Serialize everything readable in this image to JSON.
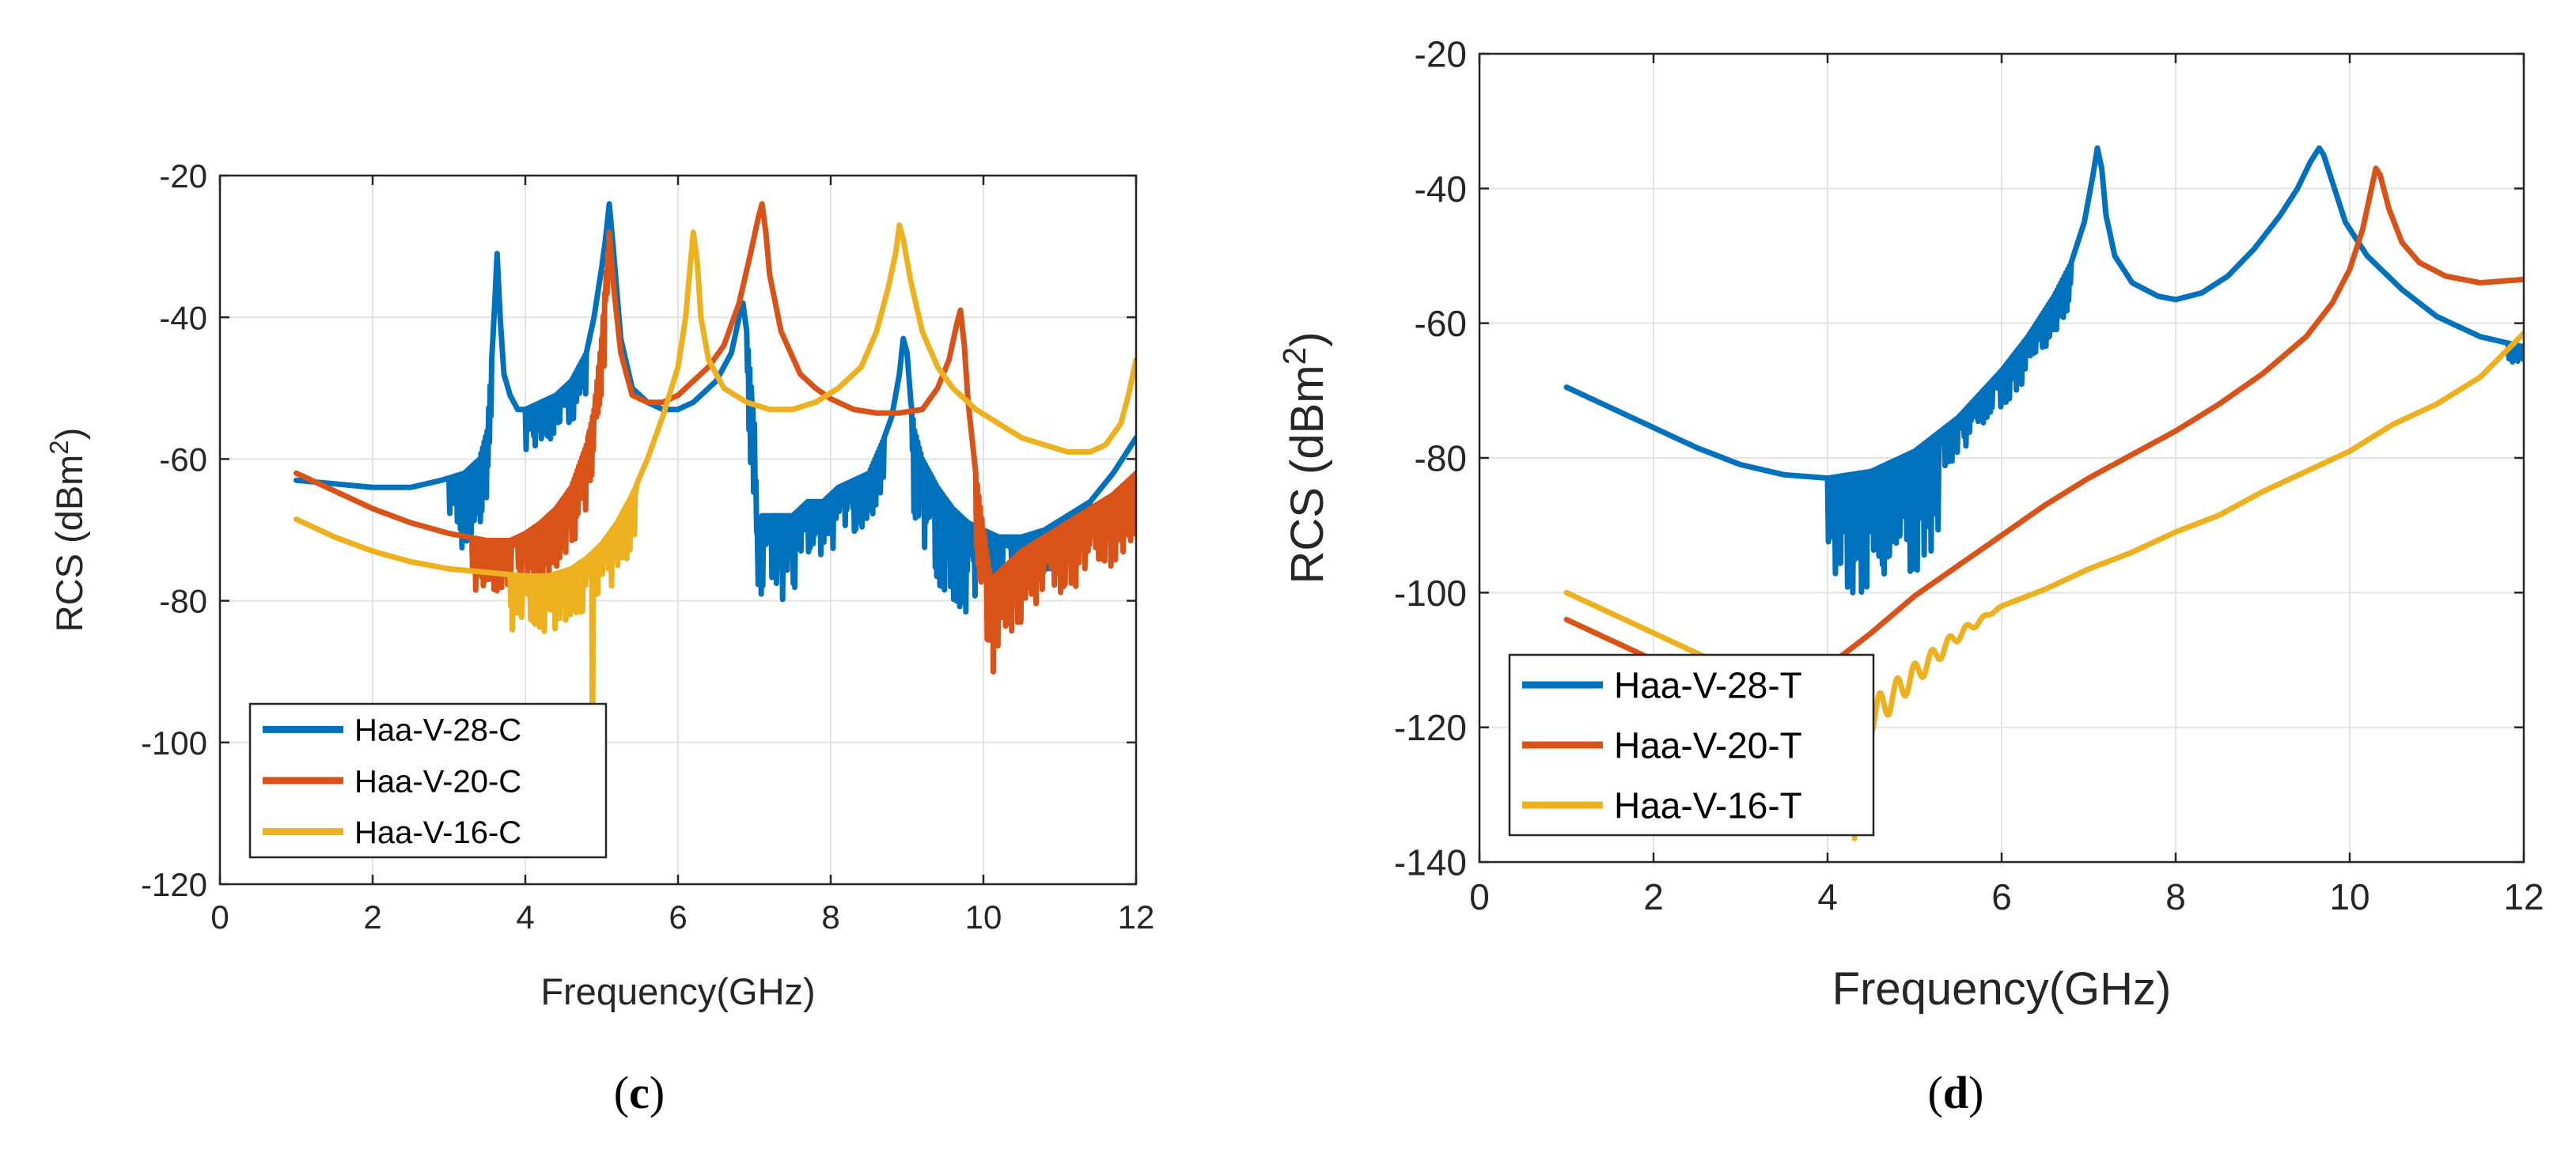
{
  "chart_data": [
    {
      "panel": "c",
      "caption_open": "(",
      "caption_letter": "c",
      "caption_close": ")",
      "type": "line",
      "xlabel": "Frequency(GHz)",
      "ylabel": "RCS (dBm",
      "ylabel_sup": "2",
      "ylabel_end": ")",
      "xlim": [
        0,
        12
      ],
      "ylim": [
        -120,
        -20
      ],
      "xticks": [
        "0",
        "2",
        "4",
        "6",
        "8",
        "10",
        "12"
      ],
      "yticks": [
        "-120",
        "-100",
        "-80",
        "-60",
        "-40",
        "-20"
      ],
      "grid": true,
      "legend_position": "bottom-left",
      "series": [
        {
          "name": "Haa-V-28-C",
          "color": "#0072BD",
          "x": [
            1.0,
            1.5,
            2.0,
            2.5,
            2.9,
            3.2,
            3.4,
            3.5,
            3.55,
            3.6,
            3.63,
            3.67,
            3.72,
            3.8,
            3.9,
            4.0,
            4.2,
            4.4,
            4.6,
            4.8,
            4.9,
            5.0,
            5.05,
            5.1,
            5.15,
            5.25,
            5.4,
            5.6,
            5.8,
            6.0,
            6.1,
            6.2,
            6.5,
            6.7,
            6.8,
            6.85,
            6.9,
            7.0,
            7.05,
            7.1,
            7.3,
            7.5,
            7.7,
            7.9,
            8.1,
            8.3,
            8.5,
            8.7,
            8.8,
            8.9,
            8.95,
            9.0,
            9.05,
            9.1,
            9.2,
            9.4,
            9.6,
            9.8,
            10.0,
            10.2,
            10.5,
            10.8,
            11.1,
            11.4,
            11.7,
            12.0
          ],
          "y": [
            -63,
            -63.5,
            -64,
            -64,
            -63,
            -62,
            -60,
            -56,
            -48,
            -38,
            -31,
            -40,
            -48,
            -51,
            -53,
            -53,
            -52,
            -51,
            -49,
            -45,
            -40,
            -33,
            -29,
            -24,
            -30,
            -43,
            -50,
            -52,
            -53,
            -53,
            -52.5,
            -52,
            -49,
            -45,
            -40,
            -38,
            -42,
            -55,
            -75,
            -68,
            -68,
            -68,
            -66,
            -66,
            -64,
            -63,
            -62,
            -57,
            -54,
            -48,
            -43,
            -45,
            -52,
            -56,
            -60,
            -64,
            -67,
            -69,
            -70,
            -71,
            -71,
            -70,
            -68,
            -66,
            -62,
            -57
          ],
          "noise_lo": [
            [
              3.0,
              3.55,
              11
            ],
            [
              4.0,
              4.8,
              6
            ],
            [
              6.9,
              7.6,
              12
            ],
            [
              7.6,
              8.7,
              8
            ],
            [
              9.05,
              9.9,
              14
            ],
            [
              9.9,
              11.4,
              6
            ]
          ]
        },
        {
          "name": "Haa-V-20-C",
          "color": "#D95319",
          "x": [
            1.0,
            1.5,
            2.0,
            2.5,
            3.0,
            3.5,
            3.8,
            4.0,
            4.2,
            4.4,
            4.6,
            4.8,
            4.9,
            5.0,
            5.05,
            5.1,
            5.15,
            5.25,
            5.4,
            5.6,
            5.8,
            6.0,
            6.2,
            6.4,
            6.6,
            6.8,
            6.95,
            7.05,
            7.1,
            7.15,
            7.2,
            7.35,
            7.6,
            7.8,
            8.0,
            8.3,
            8.6,
            8.9,
            9.2,
            9.4,
            9.55,
            9.65,
            9.7,
            9.75,
            9.8,
            9.9,
            10.0,
            10.1,
            10.2,
            10.3,
            10.5,
            10.8,
            11.1,
            11.4,
            11.7,
            12.0
          ],
          "y": [
            -62,
            -64.5,
            -67,
            -69,
            -70.5,
            -71.5,
            -71.5,
            -70.5,
            -69,
            -67,
            -64,
            -58,
            -53,
            -43,
            -35,
            -28,
            -35,
            -45,
            -51,
            -52,
            -52,
            -51,
            -49,
            -47,
            -44,
            -38,
            -31,
            -26,
            -24,
            -28,
            -34,
            -42,
            -48,
            -50,
            -51.5,
            -53,
            -53.5,
            -53.5,
            -53,
            -50,
            -46,
            -41,
            -39,
            -44,
            -52,
            -62,
            -70,
            -77,
            -76,
            -75,
            -73,
            -71,
            -69,
            -67,
            -65,
            -62
          ],
          "noise_lo": [
            [
              3.3,
              5.1,
              9
            ],
            [
              9.9,
              10.5,
              14
            ],
            [
              10.5,
              12.0,
              10
            ]
          ]
        },
        {
          "name": "Haa-V-16-C",
          "color": "#EDB120",
          "x": [
            1.0,
            1.5,
            2.0,
            2.5,
            3.0,
            3.5,
            4.0,
            4.3,
            4.6,
            4.8,
            5.0,
            5.2,
            5.4,
            5.6,
            5.8,
            6.0,
            6.1,
            6.15,
            6.2,
            6.25,
            6.3,
            6.4,
            6.6,
            6.9,
            7.2,
            7.5,
            7.8,
            8.1,
            8.4,
            8.6,
            8.75,
            8.85,
            8.9,
            8.95,
            9.05,
            9.2,
            9.4,
            9.6,
            9.9,
            10.2,
            10.5,
            10.8,
            11.1,
            11.4,
            11.6,
            11.8,
            11.9,
            12.0
          ],
          "y": [
            -68.5,
            -71,
            -73,
            -74.5,
            -75.5,
            -76,
            -76.5,
            -76.5,
            -75.5,
            -74,
            -72,
            -69,
            -65,
            -60,
            -54,
            -47,
            -40,
            -34,
            -28,
            -32,
            -40,
            -46,
            -50,
            -52,
            -53,
            -53,
            -52,
            -50,
            -47,
            -42,
            -36,
            -31,
            -27,
            -29,
            -35,
            -42,
            -47,
            -50,
            -53,
            -55,
            -57,
            -58,
            -59,
            -59,
            -58,
            -55,
            -51,
            -46
          ],
          "noise_lo": [
            [
              3.8,
              5.45,
              8
            ]
          ],
          "dips": [
            [
              4.88,
              -105
            ]
          ]
        }
      ]
    },
    {
      "panel": "d",
      "caption_open": "(",
      "caption_letter": "d",
      "caption_close": ")",
      "type": "line",
      "xlabel": "Frequency(GHz)",
      "ylabel": "RCS (dBm",
      "ylabel_sup": "2",
      "ylabel_end": ")",
      "xlim": [
        0,
        12
      ],
      "ylim": [
        -140,
        -20
      ],
      "xticks": [
        "0",
        "2",
        "4",
        "6",
        "8",
        "10",
        "12"
      ],
      "yticks": [
        "-140",
        "-120",
        "-100",
        "-80",
        "-60",
        "-40",
        "-20"
      ],
      "grid": true,
      "legend_position": "bottom-left",
      "series": [
        {
          "name": "Haa-V-28-T",
          "color": "#0072BD",
          "x": [
            1.0,
            1.5,
            2.0,
            2.5,
            3.0,
            3.5,
            4.0,
            4.5,
            5.0,
            5.5,
            6.0,
            6.3,
            6.6,
            6.8,
            6.95,
            7.05,
            7.1,
            7.15,
            7.2,
            7.3,
            7.5,
            7.8,
            8.0,
            8.3,
            8.6,
            8.9,
            9.2,
            9.4,
            9.55,
            9.65,
            9.7,
            9.8,
            9.95,
            10.2,
            10.6,
            11.0,
            11.5,
            12.0
          ],
          "y": [
            -69.5,
            -72.5,
            -75.5,
            -78.5,
            -81,
            -82.5,
            -83,
            -82,
            -79,
            -74,
            -67,
            -62,
            -56,
            -51,
            -45,
            -38,
            -34,
            -37,
            -44,
            -50,
            -54,
            -56,
            -56.5,
            -55.5,
            -53,
            -49,
            -44,
            -40,
            -36,
            -34,
            -35,
            -39,
            -45,
            -50,
            -55,
            -59,
            -62,
            -63.5
          ],
          "noise_lo": [
            [
              4.0,
              5.3,
              18
            ],
            [
              5.3,
              6.8,
              6
            ],
            [
              11.8,
              12.0,
              3
            ]
          ]
        },
        {
          "name": "Haa-V-20-T",
          "color": "#D95319",
          "x": [
            1.0,
            1.5,
            2.0,
            2.5,
            3.0,
            3.5,
            4.0,
            4.5,
            5.0,
            5.5,
            6.0,
            6.5,
            7.0,
            7.5,
            8.0,
            8.5,
            9.0,
            9.5,
            9.8,
            10.0,
            10.15,
            10.25,
            10.3,
            10.35,
            10.45,
            10.6,
            10.8,
            11.1,
            11.5,
            12.0
          ],
          "y": [
            -104,
            -107,
            -110,
            -112.5,
            -114.5,
            -115.5,
            -111,
            -106,
            -100.5,
            -96,
            -91.5,
            -87,
            -83,
            -79.5,
            -76,
            -72,
            -67.5,
            -62,
            -57,
            -52,
            -46,
            -40,
            -37,
            -38,
            -43,
            -48,
            -51,
            -53,
            -54,
            -53.5
          ],
          "noise_lo": [
            [
              3.35,
              4.05,
              9
            ]
          ]
        },
        {
          "name": "Haa-V-16-T",
          "color": "#EDB120",
          "x": [
            1.0,
            1.5,
            2.0,
            2.5,
            3.0,
            3.5,
            4.0,
            4.5,
            5.0,
            5.5,
            6.0,
            6.5,
            7.0,
            7.5,
            8.0,
            8.5,
            9.0,
            9.5,
            10.0,
            10.5,
            11.0,
            11.5,
            12.0
          ],
          "y": [
            -100,
            -103,
            -106,
            -109,
            -112,
            -115,
            -118,
            -116,
            -110.5,
            -105.5,
            -102,
            -99.5,
            -96.5,
            -94,
            -91,
            -88.5,
            -85,
            -82,
            -79,
            -75,
            -72,
            -68,
            -61.5
          ],
          "noise_lo": [
            [
              4.05,
              4.5,
              20
            ]
          ],
          "wiggles": [
            [
              4.5,
              6.0,
              5,
              0.2
            ]
          ]
        }
      ]
    }
  ]
}
